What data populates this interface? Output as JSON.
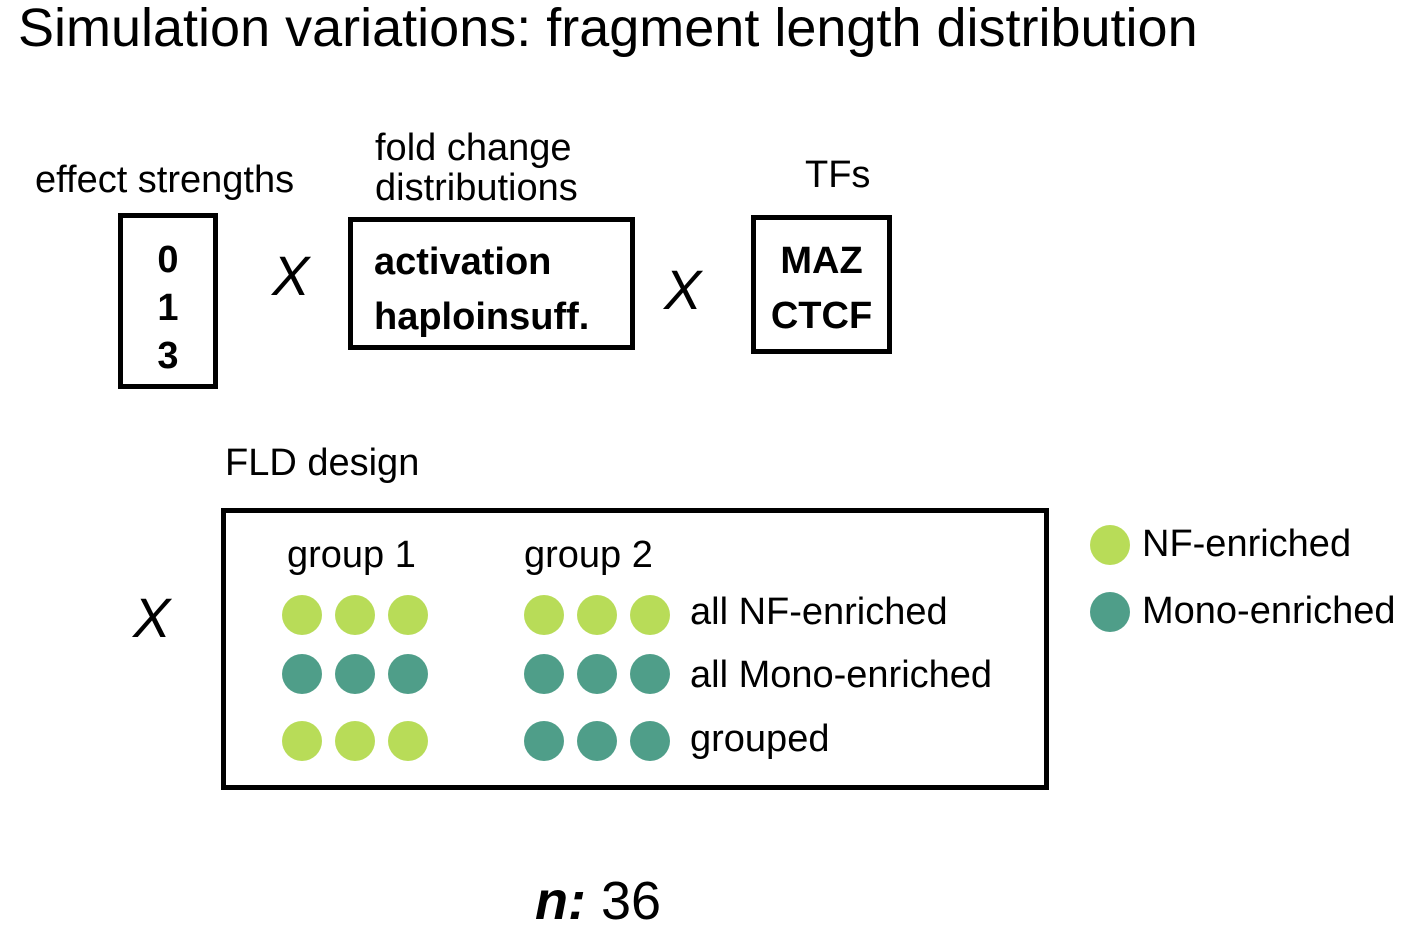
{
  "title": "Simulation variations: fragment length distribution",
  "colors": {
    "nf": "#b8dc58",
    "mono": "#4f9e89",
    "border": "#000000"
  },
  "effect_strengths": {
    "label": "effect strengths",
    "values": [
      "0",
      "1",
      "3"
    ]
  },
  "fold_change": {
    "label_line1": "fold change",
    "label_line2": "distributions",
    "values": [
      "activation",
      "haploinsuff."
    ]
  },
  "tfs": {
    "label": "TFs",
    "values": [
      "MAZ",
      "CTCF"
    ]
  },
  "times_symbol": "X",
  "fld": {
    "label": "FLD design",
    "group1": "group 1",
    "group2": "group 2",
    "rows": [
      {
        "label": "all NF-enriched",
        "group1": "nf",
        "group2": "nf"
      },
      {
        "label": "all Mono-enriched",
        "group1": "mono",
        "group2": "mono"
      },
      {
        "label": "grouped",
        "group1": "nf",
        "group2": "mono"
      }
    ]
  },
  "legend": [
    {
      "label": "NF-enriched",
      "type": "nf"
    },
    {
      "label": "Mono-enriched",
      "type": "mono"
    }
  ],
  "n": {
    "key": "n:",
    "value": "36"
  }
}
